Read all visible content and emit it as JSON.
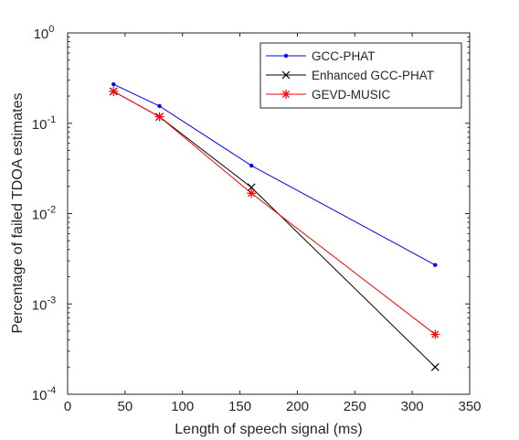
{
  "chart_data": {
    "type": "line",
    "title": "",
    "xlabel": "Length of speech signal (ms)",
    "ylabel": "Percentage of failed TDOA estimates",
    "xlim": [
      0,
      350
    ],
    "ylim": [
      0.0001,
      1
    ],
    "yscale": "log",
    "xticks": [
      0,
      50,
      100,
      150,
      200,
      250,
      300,
      350
    ],
    "yticks": [
      {
        "base": "10",
        "exp": "0",
        "value": 1
      },
      {
        "base": "10",
        "exp": "-1",
        "value": 0.1
      },
      {
        "base": "10",
        "exp": "-2",
        "value": 0.01
      },
      {
        "base": "10",
        "exp": "-3",
        "value": 0.001
      },
      {
        "base": "10",
        "exp": "-4",
        "value": 0.0001
      }
    ],
    "grid": false,
    "legend_position": "top-right",
    "x": [
      40,
      80,
      160,
      320
    ],
    "series": [
      {
        "name": "GCC-PHAT",
        "color": "#0000ff",
        "marker": "dot",
        "values": [
          0.27,
          0.155,
          0.034,
          0.0027
        ]
      },
      {
        "name": "Enhanced GCC-PHAT",
        "color": "#000000",
        "marker": "x",
        "values": [
          0.225,
          0.118,
          0.0195,
          0.0002
        ]
      },
      {
        "name": "GEVD-MUSIC",
        "color": "#ff0000",
        "marker": "asterisk",
        "values": [
          0.225,
          0.118,
          0.0168,
          0.00046
        ]
      }
    ]
  }
}
